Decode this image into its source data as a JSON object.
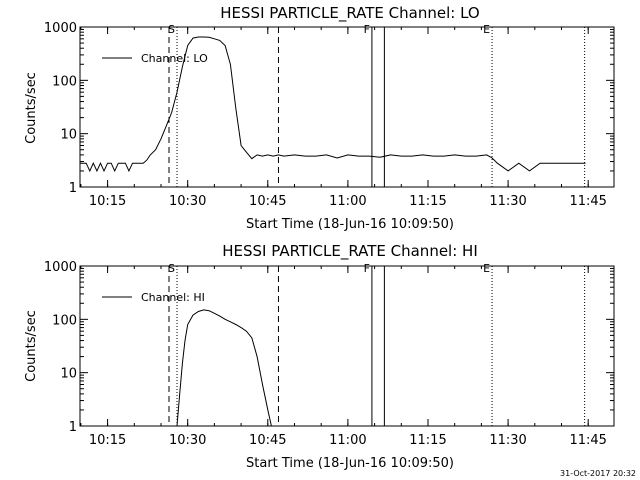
{
  "chart_data": [
    {
      "type": "line",
      "title": "HESSI PARTICLE_RATE Channel: LO",
      "xlabel": "Start Time (18-Jun-16 10:09:50)",
      "ylabel": "Counts/sec",
      "yscale": "log",
      "ylim": [
        1,
        1000
      ],
      "xlim": [
        "10:09:50",
        "11:49:50"
      ],
      "grid": false,
      "legend_position": "top-left",
      "x_ticks": [
        "10:15",
        "10:30",
        "10:45",
        "11:00",
        "11:15",
        "11:30",
        "11:45"
      ],
      "y_ticks": [
        "1",
        "10",
        "100",
        "1000"
      ],
      "markers": [
        {
          "label": "S",
          "time": "10:28:00",
          "style": "dotted"
        },
        {
          "label": "F",
          "time": "11:04:30",
          "style": "solid"
        },
        {
          "label": "E",
          "time": "11:27:00",
          "style": "dotted"
        }
      ],
      "vertical_lines": [
        {
          "time": "10:26:30",
          "style": "dashed"
        },
        {
          "time": "10:47:00",
          "style": "dashed"
        },
        {
          "time": "11:06:50",
          "style": "solid"
        },
        {
          "time": "11:44:20",
          "style": "dotted"
        }
      ],
      "series": [
        {
          "name": "Channel: LO",
          "x": [
            "10:09:50",
            "10:11:00",
            "10:11:40",
            "10:12:20",
            "10:13:00",
            "10:13:40",
            "10:14:20",
            "10:15:00",
            "10:15:40",
            "10:16:20",
            "10:17:00",
            "10:17:40",
            "10:18:20",
            "10:19:00",
            "10:19:40",
            "10:20:20",
            "10:21:00",
            "10:21:40",
            "10:22:20",
            "10:23:00",
            "10:24:00",
            "10:25:00",
            "10:26:00",
            "10:27:00",
            "10:28:00",
            "10:29:00",
            "10:30:00",
            "10:31:00",
            "10:32:00",
            "10:33:00",
            "10:34:00",
            "10:35:00",
            "10:36:00",
            "10:37:00",
            "10:38:00",
            "10:39:00",
            "10:40:00",
            "10:41:00",
            "10:42:00",
            "10:43:00",
            "10:44:00",
            "10:45:00",
            "10:46:00",
            "10:47:00",
            "10:48:00",
            "10:50:00",
            "10:52:00",
            "10:54:00",
            "10:56:00",
            "10:58:00",
            "11:00:00",
            "11:02:00",
            "11:04:00",
            "11:06:00",
            "11:08:00",
            "11:10:00",
            "11:12:00",
            "11:14:00",
            "11:16:00",
            "11:18:00",
            "11:20:00",
            "11:22:00",
            "11:24:00",
            "11:26:00",
            "11:27:00",
            "11:28:00",
            "11:30:00",
            "11:32:00",
            "11:34:00",
            "11:36:00",
            "11:38:00",
            "11:40:00",
            "11:42:00",
            "11:44:30"
          ],
          "values": [
            2.8,
            2.8,
            2.0,
            2.8,
            2.0,
            2.8,
            2.0,
            2.8,
            2.8,
            2.0,
            2.8,
            2.8,
            2.8,
            2.0,
            2.8,
            2.8,
            2.8,
            2.8,
            3.2,
            4,
            5,
            8,
            14,
            25,
            60,
            180,
            450,
            620,
            650,
            650,
            640,
            600,
            560,
            450,
            200,
            30,
            6,
            4.5,
            3.4,
            4,
            3.8,
            4,
            3.8,
            4,
            3.8,
            4,
            3.8,
            3.8,
            4,
            3.5,
            4,
            3.8,
            3.8,
            3.6,
            4,
            3.8,
            3.8,
            4,
            3.8,
            3.8,
            4,
            3.8,
            3.8,
            4,
            3.5,
            2.8,
            2.0,
            2.8,
            2.0,
            2.8,
            2.8,
            2.8,
            2.8,
            2.8
          ]
        }
      ]
    },
    {
      "type": "line",
      "title": "HESSI PARTICLE_RATE Channel: HI",
      "xlabel": "Start Time (18-Jun-16 10:09:50)",
      "ylabel": "Counts/sec",
      "yscale": "log",
      "ylim": [
        1,
        1000
      ],
      "xlim": [
        "10:09:50",
        "11:49:50"
      ],
      "grid": false,
      "legend_position": "top-left",
      "x_ticks": [
        "10:15",
        "10:30",
        "10:45",
        "11:00",
        "11:15",
        "11:30",
        "11:45"
      ],
      "y_ticks": [
        "1",
        "10",
        "100",
        "1000"
      ],
      "markers": [
        {
          "label": "S",
          "time": "10:28:00",
          "style": "dotted"
        },
        {
          "label": "F",
          "time": "11:04:30",
          "style": "solid"
        },
        {
          "label": "E",
          "time": "11:27:00",
          "style": "dotted"
        }
      ],
      "vertical_lines": [
        {
          "time": "10:26:30",
          "style": "dashed"
        },
        {
          "time": "10:47:00",
          "style": "dashed"
        },
        {
          "time": "11:06:50",
          "style": "solid"
        },
        {
          "time": "11:44:20",
          "style": "dotted"
        }
      ],
      "series": [
        {
          "name": "Channel: HI",
          "x": [
            "10:28:00",
            "10:28:30",
            "10:29:00",
            "10:29:30",
            "10:30:00",
            "10:31:00",
            "10:32:00",
            "10:33:00",
            "10:34:00",
            "10:35:00",
            "10:36:00",
            "10:37:00",
            "10:38:00",
            "10:39:00",
            "10:40:00",
            "10:41:00",
            "10:42:00",
            "10:43:00",
            "10:44:00",
            "10:45:00",
            "10:45:40"
          ],
          "values": [
            1,
            4,
            15,
            40,
            80,
            120,
            140,
            150,
            145,
            130,
            115,
            100,
            90,
            80,
            70,
            60,
            45,
            20,
            6,
            2,
            1
          ]
        }
      ]
    }
  ],
  "footer": {
    "stamp": "31-Oct-2017 20:32"
  }
}
